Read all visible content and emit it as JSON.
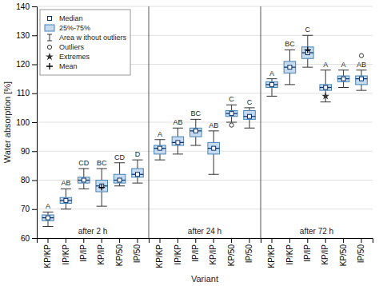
{
  "chart_data": {
    "type": "box",
    "xlabel": "Variant",
    "ylabel": "Water absorption [%]",
    "ylim": [
      60,
      140
    ],
    "yticks": [
      60,
      70,
      80,
      90,
      100,
      110,
      120,
      130,
      140
    ],
    "grid": true,
    "legend": "upper left",
    "legend_labels": [
      "Median",
      "25%-75%",
      "Area w ithout outliers",
      "Outliers",
      "Extremes",
      "Mean"
    ],
    "categories": [
      "KP/KP",
      "IP/KP",
      "IP/IP",
      "KP/IP",
      "KP/50",
      "IP/50"
    ],
    "groups": [
      {
        "name": "after 2 h",
        "median": [
          67,
          73,
          80,
          78,
          80,
          82
        ],
        "q1": [
          66,
          72,
          79,
          76,
          79,
          81
        ],
        "q3": [
          68,
          74,
          81,
          80,
          82,
          84
        ],
        "whislo": [
          64,
          70,
          77,
          71,
          78,
          79
        ],
        "whishi": [
          69,
          77,
          84,
          84,
          86,
          87
        ],
        "mean": [
          null,
          null,
          null,
          77.5,
          null,
          null
        ],
        "outliers": [
          [],
          [],
          [],
          [],
          [],
          []
        ],
        "extreme": [
          null,
          null,
          null,
          null,
          null,
          null
        ],
        "stat_labels": [
          "A",
          "AB",
          "CD",
          "BC",
          "CD",
          "D"
        ]
      },
      {
        "name": "after 24 h",
        "median": [
          91,
          93,
          97,
          91,
          103,
          102
        ],
        "q1": [
          89,
          92,
          95,
          89,
          102,
          101
        ],
        "q3": [
          92,
          95,
          98,
          93,
          104,
          104
        ],
        "whislo": [
          87,
          89,
          92,
          82,
          100,
          98
        ],
        "whishi": [
          94,
          98,
          101,
          97,
          106,
          105
        ],
        "mean": [
          null,
          null,
          null,
          null,
          null,
          null
        ],
        "outliers": [
          [],
          [],
          [],
          [],
          [
            99
          ],
          []
        ],
        "extreme": [
          null,
          null,
          null,
          null,
          null,
          null
        ],
        "stat_labels": [
          "A",
          "AB",
          "BC",
          "AB",
          "C",
          "C"
        ]
      },
      {
        "name": "after 72 h",
        "median": [
          113,
          119,
          124,
          112,
          115,
          115
        ],
        "q1": [
          112,
          117,
          122,
          111,
          114,
          113
        ],
        "q3": [
          114,
          121,
          126,
          113,
          116,
          116
        ],
        "whislo": [
          109,
          113,
          119,
          107,
          112,
          111
        ],
        "whishi": [
          115,
          125,
          130,
          118,
          118,
          118
        ],
        "mean": [
          null,
          null,
          125,
          null,
          null,
          null
        ],
        "outliers": [
          [],
          [],
          [],
          [],
          [],
          [
            123
          ]
        ],
        "extreme": [
          null,
          null,
          null,
          109,
          null,
          null
        ],
        "stat_labels": [
          "A",
          "BC",
          "C",
          "A",
          "A",
          "AB"
        ]
      }
    ]
  }
}
